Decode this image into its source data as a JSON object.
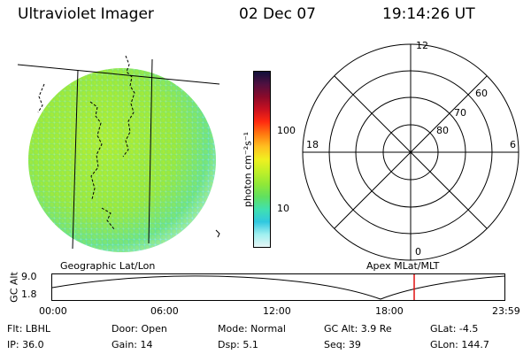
{
  "header": {
    "instrument": "Ultraviolet Imager",
    "date": "02 Dec 07",
    "time": "19:14:26 UT"
  },
  "panels": {
    "left_label": "Geographic Lat/Lon",
    "right_label": "Apex MLat/MLT"
  },
  "colorbar": {
    "unit_label": "photon cm⁻²s⁻¹",
    "ticks": [
      "100",
      "10"
    ],
    "colors": [
      "#10103a",
      "#501040",
      "#8a0a2a",
      "#c81020",
      "#ff2a10",
      "#ff7a10",
      "#ffc020",
      "#f0f020",
      "#c0f028",
      "#90e838",
      "#60e060",
      "#40e0b0",
      "#30c8e0",
      "#a0f0f0",
      "#e6f6f6"
    ]
  },
  "polar": {
    "mlt_labels": {
      "top": "12",
      "right": "6",
      "bottom": "0",
      "left": "18"
    },
    "lat_labels": [
      "60",
      "70",
      "80"
    ]
  },
  "timeline": {
    "axis_title": "GC Alt",
    "y_ticks": [
      "9.0",
      "1.8"
    ],
    "x_ticks": [
      "00:00",
      "06:00",
      "12:00",
      "18:00",
      "23:59"
    ],
    "marker_color": "#e01010"
  },
  "footer": {
    "row1": {
      "flt": "Flt: LBHL",
      "door": "Door: Open",
      "mode": "Mode: Normal",
      "gcalt": "GC Alt: 3.9 Re",
      "glat": "GLat:  -4.5"
    },
    "row2": {
      "ip": "IP: 36.0",
      "gain": "Gain: 14",
      "dsp": "Dsp:    5.1",
      "seq": "Seq: 39",
      "glon": "GLon: 144.7"
    }
  }
}
